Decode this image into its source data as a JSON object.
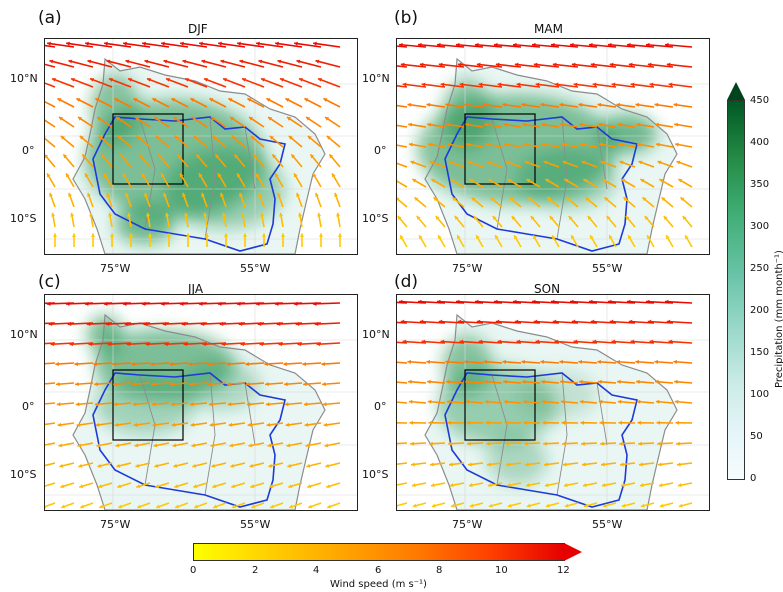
{
  "panels": [
    {
      "letter": "(a)",
      "season": "DJF"
    },
    {
      "letter": "(b)",
      "season": "MAM"
    },
    {
      "letter": "(c)",
      "season": "JJA"
    },
    {
      "letter": "(d)",
      "season": "SON"
    }
  ],
  "axes": {
    "lat_ticks": [
      "10°N",
      "0°",
      "10°S"
    ],
    "lon_ticks": [
      "75°W",
      "55°W"
    ]
  },
  "precip_colorbar": {
    "label": "Precipitation (mm month⁻¹)",
    "ticks": [
      "0",
      "50",
      "100",
      "150",
      "200",
      "250",
      "300",
      "350",
      "400",
      "450"
    ],
    "colors": [
      "#f7fcfd",
      "#99d8c9",
      "#41ae76",
      "#00441b"
    ]
  },
  "wind_colorbar": {
    "label": "Wind speed (m s⁻¹)",
    "ticks": [
      "0",
      "2",
      "4",
      "6",
      "8",
      "10",
      "12"
    ],
    "colors": [
      "#ffff00",
      "#ffa500",
      "#ff4000",
      "#e60000"
    ]
  },
  "colors": {
    "basin_outline": "#1f3ad6",
    "country_border": "#8c8c8c",
    "analysis_box": "#000000"
  }
}
